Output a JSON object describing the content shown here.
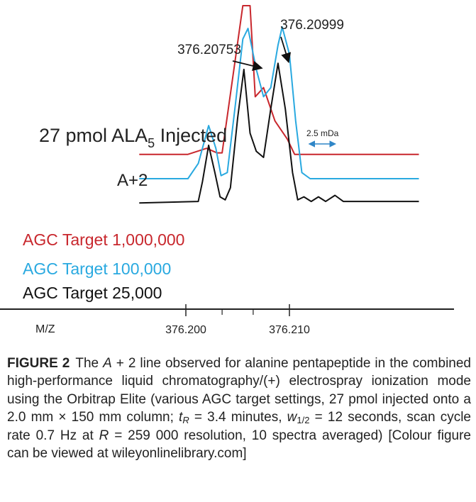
{
  "chart_data": {
    "type": "line",
    "title": "27 pmol ALA",
    "title_subscript": "5",
    "title_suffix": " Injected",
    "subtitle": "A+2",
    "xlabel": "M/Z",
    "xlim": [
      376.1955,
      376.2225
    ],
    "x_ticks": [
      376.2,
      376.21
    ],
    "x_tick_labels": [
      "376.200",
      "376.210"
    ],
    "grid": false,
    "legend_placement": "left",
    "series": [
      {
        "name": "AGC Target 1,000,000",
        "color": "#c8272d",
        "baseline": 0.51,
        "points": [
          [
            376.1955,
            0.51
          ],
          [
            376.2002,
            0.51
          ],
          [
            376.202,
            0.53
          ],
          [
            376.203,
            0.515
          ],
          [
            376.2035,
            0.515
          ],
          [
            376.2048,
            0.83
          ],
          [
            376.2055,
            1.0
          ],
          [
            376.2062,
            1.0
          ],
          [
            376.2067,
            0.7
          ],
          [
            376.2075,
            0.73
          ],
          [
            376.2086,
            0.62
          ],
          [
            376.2098,
            0.56
          ],
          [
            376.2105,
            0.51
          ],
          [
            376.2225,
            0.51
          ]
        ]
      },
      {
        "name": "AGC Target 100,000",
        "color": "#29a9e0",
        "baseline": 0.43,
        "points": [
          [
            376.1955,
            0.43
          ],
          [
            376.2002,
            0.43
          ],
          [
            376.2012,
            0.48
          ],
          [
            376.2022,
            0.605
          ],
          [
            376.2029,
            0.53
          ],
          [
            376.2034,
            0.44
          ],
          [
            376.204,
            0.45
          ],
          [
            376.2048,
            0.68
          ],
          [
            376.2055,
            0.89
          ],
          [
            376.206,
            0.925
          ],
          [
            376.2068,
            0.79
          ],
          [
            376.2075,
            0.7
          ],
          [
            376.2082,
            0.73
          ],
          [
            376.2089,
            0.87
          ],
          [
            376.2093,
            0.93
          ],
          [
            376.21,
            0.84
          ],
          [
            376.2106,
            0.62
          ],
          [
            376.2112,
            0.45
          ],
          [
            376.212,
            0.43
          ],
          [
            376.2225,
            0.43
          ]
        ]
      },
      {
        "name": "AGC Target 25,000",
        "color": "#111111",
        "baseline": 0.35,
        "points": [
          [
            376.1955,
            0.35
          ],
          [
            376.2012,
            0.355
          ],
          [
            376.2016,
            0.42
          ],
          [
            376.2022,
            0.54
          ],
          [
            376.2028,
            0.45
          ],
          [
            376.2033,
            0.37
          ],
          [
            376.2038,
            0.36
          ],
          [
            376.2043,
            0.4
          ],
          [
            376.205,
            0.63
          ],
          [
            376.2056,
            0.79
          ],
          [
            376.2062,
            0.58
          ],
          [
            376.2068,
            0.52
          ],
          [
            376.2075,
            0.5
          ],
          [
            376.2082,
            0.66
          ],
          [
            376.2089,
            0.81
          ],
          [
            376.2096,
            0.66
          ],
          [
            376.2103,
            0.45
          ],
          [
            376.2108,
            0.36
          ],
          [
            376.2114,
            0.37
          ],
          [
            376.2121,
            0.355
          ],
          [
            376.2128,
            0.37
          ],
          [
            376.2135,
            0.355
          ],
          [
            376.2144,
            0.375
          ],
          [
            376.2152,
            0.355
          ],
          [
            376.2225,
            0.355
          ]
        ]
      }
    ],
    "annotations": [
      {
        "text": "376.20753",
        "x": 376.20753,
        "y": 0.785
      },
      {
        "text": "376.20999",
        "x": 376.20999,
        "y": 0.805
      }
    ],
    "scale_marker": {
      "text": "2.5 mDa",
      "width_mda": 2.5
    }
  },
  "caption": {
    "figure_label": "FIGURE 2",
    "part1": "The ",
    "a_italic": "A",
    "part2": " + 2 line observed for alanine pentapeptide in the combined high-performance liquid chromatography/(+) electrospray ionization mode using the Orbitrap Elite (various AGC target settings, 27 pmol injected onto a 2.0 mm × 150 mm column; ",
    "tr_italic": "t",
    "tr_sub": "R",
    "part3": " = 3.4 minutes, ",
    "w_italic": "w",
    "w_sub": "1/2",
    "part4": " = 12 seconds, scan cycle rate 0.7 Hz at ",
    "r_italic": "R",
    "part5": " = 259 000 resolution, 10 spectra averaged) [Colour figure can be viewed at wileyonlinelibrary.com]"
  }
}
